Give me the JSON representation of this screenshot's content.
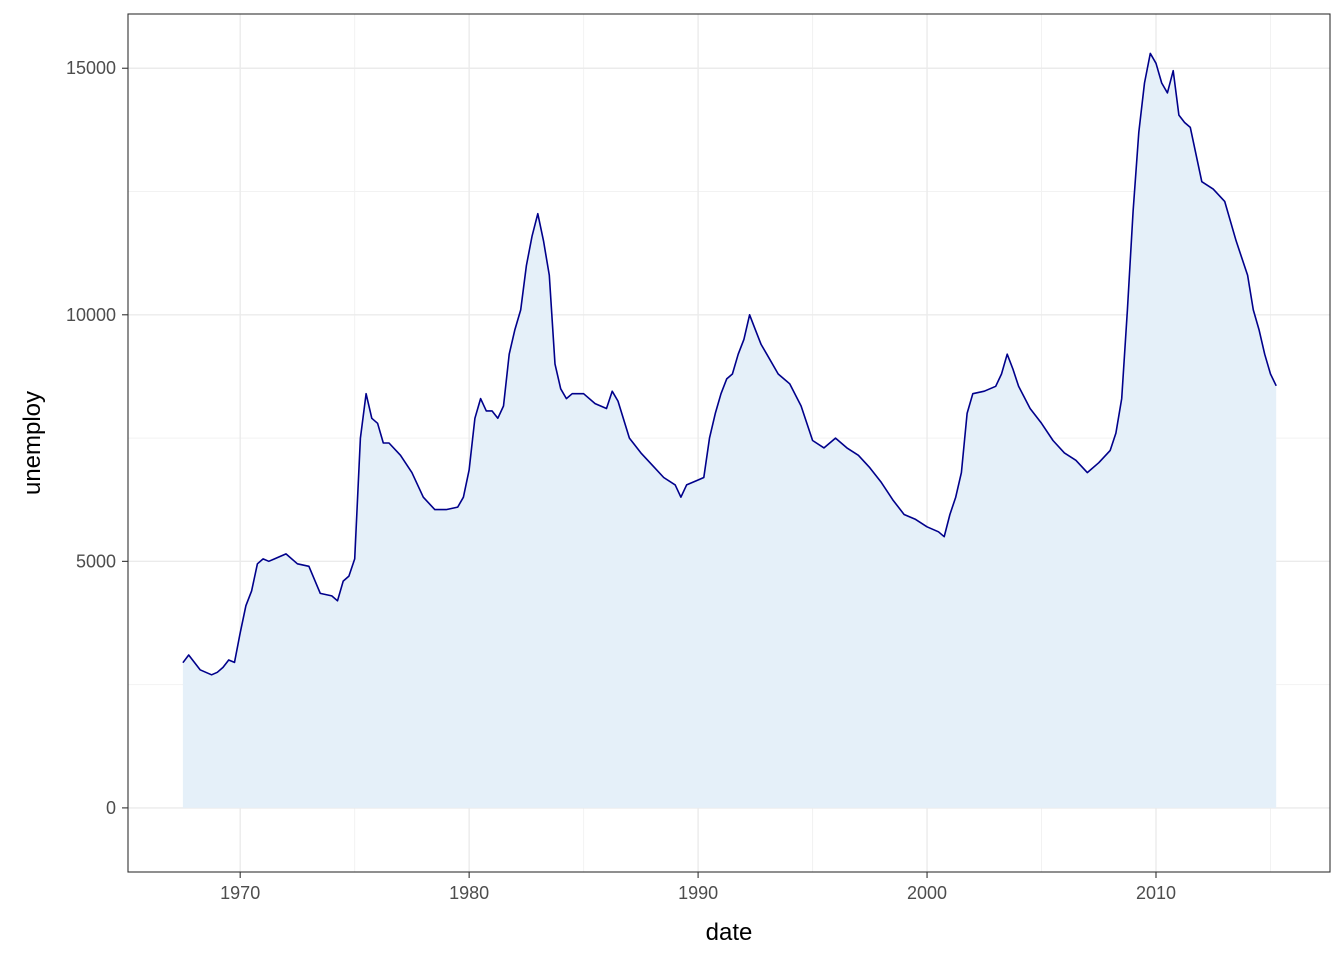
{
  "chart_data": {
    "type": "area",
    "xlabel": "date",
    "ylabel": "unemploy",
    "xlim": [
      1965.1,
      2017.6
    ],
    "ylim": [
      -1300,
      16100
    ],
    "x_ticks": [
      1970,
      1980,
      1990,
      2000,
      2010
    ],
    "x_tick_labels": [
      "1970",
      "1980",
      "1990",
      "2000",
      "2010"
    ],
    "y_ticks": [
      0,
      5000,
      10000,
      15000
    ],
    "y_tick_labels": [
      "0",
      "5000",
      "10000",
      "15000"
    ],
    "grid": true,
    "line_color": "#00008b",
    "fill_color": "#e5f0f9",
    "series": [
      {
        "x": [
          1967.5,
          1967.75,
          1968.0,
          1968.25,
          1968.5,
          1968.75,
          1969.0,
          1969.25,
          1969.5,
          1969.75,
          1970.0,
          1970.25,
          1970.5,
          1970.75,
          1971.0,
          1971.25,
          1971.5,
          1972.0,
          1972.5,
          1973.0,
          1973.5,
          1974.0,
          1974.25,
          1974.5,
          1974.75,
          1975.0,
          1975.25,
          1975.5,
          1975.75,
          1976.0,
          1976.25,
          1976.5,
          1977.0,
          1977.5,
          1978.0,
          1978.5,
          1979.0,
          1979.5,
          1979.75,
          1980.0,
          1980.25,
          1980.5,
          1980.75,
          1981.0,
          1981.25,
          1981.5,
          1981.75,
          1982.0,
          1982.25,
          1982.5,
          1982.75,
          1983.0,
          1983.25,
          1983.5,
          1983.75,
          1984.0,
          1984.25,
          1984.5,
          1985.0,
          1985.5,
          1986.0,
          1986.25,
          1986.5,
          1987.0,
          1987.5,
          1988.0,
          1988.5,
          1989.0,
          1989.25,
          1989.5,
          1990.0,
          1990.25,
          1990.5,
          1990.75,
          1991.0,
          1991.25,
          1991.5,
          1991.75,
          1992.0,
          1992.25,
          1992.5,
          1992.75,
          1993.0,
          1993.5,
          1994.0,
          1994.5,
          1995.0,
          1995.5,
          1996.0,
          1996.5,
          1997.0,
          1997.5,
          1998.0,
          1998.5,
          1999.0,
          1999.5,
          2000.0,
          2000.5,
          2000.75,
          2001.0,
          2001.25,
          2001.5,
          2001.75,
          2002.0,
          2002.5,
          2003.0,
          2003.25,
          2003.5,
          2003.75,
          2004.0,
          2004.5,
          2005.0,
          2005.5,
          2006.0,
          2006.5,
          2007.0,
          2007.5,
          2008.0,
          2008.25,
          2008.5,
          2008.75,
          2009.0,
          2009.25,
          2009.5,
          2009.75,
          2010.0,
          2010.25,
          2010.5,
          2010.75,
          2011.0,
          2011.25,
          2011.5,
          2012.0,
          2012.5,
          2013.0,
          2013.5,
          2014.0,
          2014.25,
          2014.5,
          2014.75,
          2015.0,
          2015.25
        ],
        "y": [
          2944,
          3100,
          2950,
          2800,
          2750,
          2700,
          2750,
          2850,
          3000,
          2950,
          3550,
          4100,
          4400,
          4950,
          5050,
          5000,
          5050,
          5150,
          4950,
          4900,
          4350,
          4300,
          4200,
          4600,
          4700,
          5050,
          7500,
          8400,
          7900,
          7800,
          7400,
          7400,
          7150,
          6800,
          6300,
          6050,
          6050,
          6100,
          6300,
          6850,
          7900,
          8300,
          8050,
          8050,
          7900,
          8150,
          9200,
          9700,
          10100,
          11000,
          11600,
          12050,
          11500,
          10800,
          9000,
          8500,
          8300,
          8400,
          8400,
          8200,
          8100,
          8450,
          8250,
          7500,
          7200,
          6950,
          6700,
          6550,
          6300,
          6550,
          6650,
          6700,
          7500,
          8000,
          8400,
          8700,
          8800,
          9200,
          9500,
          10000,
          9700,
          9400,
          9200,
          8800,
          8600,
          8150,
          7450,
          7300,
          7500,
          7300,
          7150,
          6900,
          6600,
          6250,
          5950,
          5850,
          5700,
          5600,
          5500,
          5950,
          6300,
          6800,
          8000,
          8400,
          8450,
          8550,
          8800,
          9200,
          8900,
          8550,
          8100,
          7800,
          7450,
          7200,
          7050,
          6800,
          7000,
          7250,
          7600,
          8300,
          10100,
          12100,
          13700,
          14700,
          15300,
          15100,
          14700,
          14500,
          14950,
          14050,
          13900,
          13800,
          12700,
          12550,
          12300,
          11500,
          10800,
          10100,
          9700,
          9200,
          8800,
          8560
        ]
      }
    ]
  }
}
